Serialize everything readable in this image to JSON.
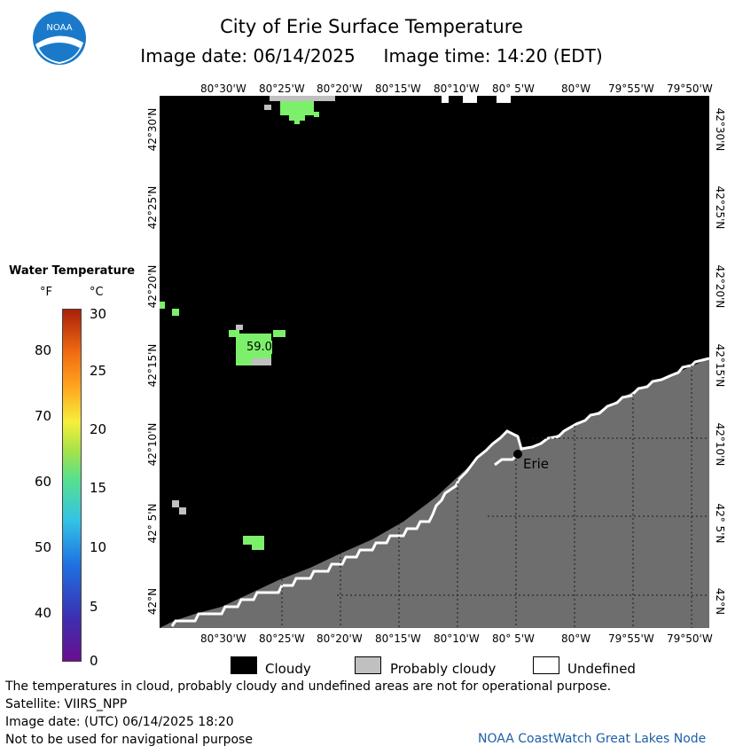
{
  "header": {
    "title": "City of Erie Surface Temperature",
    "subtitle": "Image date: 06/14/2025     Image time: 14:20 (EDT)",
    "logo_text": "NOAA"
  },
  "map": {
    "lon_labels": [
      "80°30'W",
      "80°25'W",
      "80°20'W",
      "80°15'W",
      "80°10'W",
      "80° 5'W",
      "80°W",
      "79°55'W",
      "79°50'W"
    ],
    "lat_labels": [
      "42°30'N",
      "42°25'N",
      "42°20'N",
      "42°15'N",
      "42°10'N",
      "42° 5'N",
      "42°N"
    ],
    "temperature_label": "59.0",
    "city": "Erie",
    "colors": {
      "cloud": "#000000",
      "land": "#6e6e6e",
      "probably_cloudy": "#c0c0c0",
      "undefined": "#ffffff",
      "water_59": "#7cf06a"
    }
  },
  "legend": {
    "title": "Water Temperature",
    "unit_f": "°F",
    "unit_c": "°C",
    "f_ticks": [
      "80",
      "70",
      "60",
      "50",
      "40"
    ],
    "c_ticks": [
      "30",
      "25",
      "20",
      "15",
      "10",
      "5",
      "0"
    ]
  },
  "key": {
    "cloudy": "Cloudy",
    "probably_cloudy": "Probably cloudy",
    "undefined": "Undefined"
  },
  "footer": {
    "note": "The temperatures in cloud, probably cloudy and undefined areas are not for operational purpose.",
    "satellite": "Satellite: VIIRS_NPP",
    "utc_date": "Image date: (UTC) 06/14/2025  18:20",
    "nav_warning": "Not to be used for navigational purpose",
    "credit": "NOAA CoastWatch Great Lakes Node"
  }
}
